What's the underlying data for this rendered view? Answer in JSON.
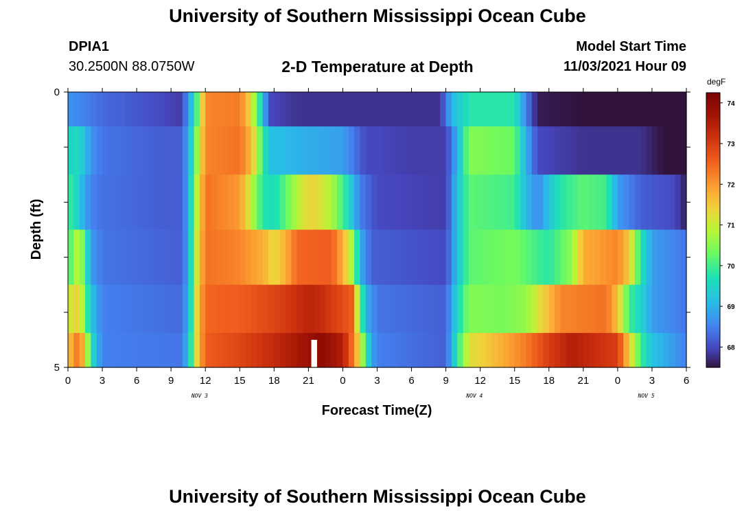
{
  "header": {
    "title": "University of Southern Mississippi Ocean Cube",
    "station": "DPIA1",
    "coords": "30.2500N  88.0750W",
    "subtitle": "2-D Temperature at Depth",
    "start_label": "Model Start Time",
    "start_value": "11/03/2021 Hour 09"
  },
  "footer": {
    "title": "University of Southern Mississippi Ocean Cube"
  },
  "chart_data": {
    "type": "heatmap",
    "title": "2-D Temperature at Depth",
    "xlabel": "Forecast Time(Z)",
    "ylabel": "Depth (ft)",
    "x_range_hours": [
      0,
      54
    ],
    "x_tick_labels": [
      "0",
      "3",
      "6",
      "9",
      "12",
      "15",
      "18",
      "21",
      "0",
      "3",
      "6",
      "9",
      "12",
      "15",
      "18",
      "21",
      "0",
      "3",
      "6"
    ],
    "date_labels": [
      {
        "text": "NOV 3",
        "hour": 11.5
      },
      {
        "text": "NOV 4",
        "hour": 35.5
      },
      {
        "text": "NOV 5",
        "hour": 50.5
      }
    ],
    "y_range_ft": [
      0,
      5
    ],
    "y_tick_labels": [
      "0",
      "5"
    ],
    "colorbar": {
      "unit": "degF",
      "range": [
        67.5,
        74.25
      ],
      "ticks": [
        "74",
        "73",
        "72",
        "71",
        "70",
        "69",
        "68"
      ]
    },
    "depth_rows_ft": [
      0.25,
      1.0,
      2.0,
      3.0,
      4.0,
      4.75
    ],
    "temperature_keypoints": [
      [
        [
          0,
          68.7
        ],
        [
          3,
          68.3
        ],
        [
          5,
          68.2
        ],
        [
          8,
          68.0
        ],
        [
          9.8,
          67.9
        ],
        [
          10.5,
          68.6
        ],
        [
          11.2,
          70.0
        ],
        [
          12,
          72.2
        ],
        [
          15,
          72.3
        ],
        [
          16,
          71.3
        ],
        [
          17,
          69.3
        ],
        [
          17.5,
          68.0
        ],
        [
          20,
          67.8
        ],
        [
          30,
          67.8
        ],
        [
          32.5,
          67.8
        ],
        [
          33.5,
          69.0
        ],
        [
          35,
          69.8
        ],
        [
          39,
          69.8
        ],
        [
          40,
          68.5
        ],
        [
          41,
          67.6
        ],
        [
          45,
          67.5
        ],
        [
          48,
          67.5
        ],
        [
          50,
          67.4
        ],
        [
          52,
          67.0
        ],
        [
          53.7,
          66.8
        ],
        [
          54,
          66.0
        ]
      ],
      [
        [
          0,
          69.5
        ],
        [
          1,
          69.6
        ],
        [
          2,
          68.7
        ],
        [
          3,
          68.4
        ],
        [
          8,
          68.2
        ],
        [
          9.8,
          68.2
        ],
        [
          10.5,
          68.8
        ],
        [
          11.2,
          70.5
        ],
        [
          12,
          72.2
        ],
        [
          15,
          72.4
        ],
        [
          16,
          71.7
        ],
        [
          17,
          70.0
        ],
        [
          17.5,
          69.2
        ],
        [
          20,
          69.0
        ],
        [
          24,
          68.8
        ],
        [
          26,
          68.0
        ],
        [
          30,
          67.9
        ],
        [
          33,
          67.9
        ],
        [
          34,
          69.0
        ],
        [
          35,
          70.5
        ],
        [
          39,
          70.3
        ],
        [
          40,
          69.0
        ],
        [
          41,
          68.0
        ],
        [
          45,
          67.8
        ],
        [
          48,
          67.8
        ],
        [
          50,
          67.8
        ],
        [
          52,
          67.5
        ],
        [
          54,
          67.0
        ]
      ],
      [
        [
          0,
          70.0
        ],
        [
          0.7,
          69.6
        ],
        [
          1.5,
          68.8
        ],
        [
          2.5,
          68.4
        ],
        [
          8,
          68.2
        ],
        [
          10,
          68.2
        ],
        [
          10.5,
          68.9
        ],
        [
          11.2,
          70.8
        ],
        [
          12,
          72.4
        ],
        [
          15,
          72.0
        ],
        [
          16,
          71.0
        ],
        [
          17,
          69.8
        ],
        [
          18,
          69.6
        ],
        [
          19.5,
          70.5
        ],
        [
          20.5,
          71.2
        ],
        [
          21.5,
          71.4
        ],
        [
          23,
          70.8
        ],
        [
          24.5,
          69.6
        ],
        [
          25.5,
          68.5
        ],
        [
          27,
          68.0
        ],
        [
          33,
          67.9
        ],
        [
          34,
          69.2
        ],
        [
          35,
          70.2
        ],
        [
          39,
          70.0
        ],
        [
          40,
          69.1
        ],
        [
          41,
          68.6
        ],
        [
          42,
          69.2
        ],
        [
          43,
          69.8
        ],
        [
          45,
          70.2
        ],
        [
          47,
          70.0
        ],
        [
          48,
          68.8
        ],
        [
          50,
          68.2
        ],
        [
          53,
          68.0
        ],
        [
          54,
          67.6
        ]
      ],
      [
        [
          0,
          69.8
        ],
        [
          0.5,
          70.6
        ],
        [
          1,
          71.0
        ],
        [
          1.5,
          70.0
        ],
        [
          2,
          68.8
        ],
        [
          3,
          68.4
        ],
        [
          10,
          68.2
        ],
        [
          10.5,
          68.9
        ],
        [
          11.2,
          71.0
        ],
        [
          12,
          72.4
        ],
        [
          15,
          72.2
        ],
        [
          17,
          71.8
        ],
        [
          18,
          71.3
        ],
        [
          19,
          71.8
        ],
        [
          20,
          72.5
        ],
        [
          23,
          72.6
        ],
        [
          24,
          71.8
        ],
        [
          25,
          70.5
        ],
        [
          25.5,
          69.0
        ],
        [
          26.5,
          68.2
        ],
        [
          33,
          68.0
        ],
        [
          34,
          69.2
        ],
        [
          35,
          70.2
        ],
        [
          39,
          70.4
        ],
        [
          42,
          69.8
        ],
        [
          44,
          70.6
        ],
        [
          45,
          71.8
        ],
        [
          48,
          72.2
        ],
        [
          49,
          71.5
        ],
        [
          50,
          69.8
        ],
        [
          51,
          68.8
        ],
        [
          54,
          68.4
        ]
      ],
      [
        [
          0,
          71.0
        ],
        [
          1,
          71.5
        ],
        [
          1.6,
          70.0
        ],
        [
          2.3,
          69.0
        ],
        [
          3,
          68.5
        ],
        [
          10,
          68.3
        ],
        [
          10.6,
          69.2
        ],
        [
          11.3,
          71.5
        ],
        [
          12,
          72.5
        ],
        [
          15,
          72.6
        ],
        [
          18,
          72.9
        ],
        [
          21,
          73.4
        ],
        [
          22,
          73.3
        ],
        [
          24.8,
          72.6
        ],
        [
          25.3,
          71.0
        ],
        [
          26,
          69.0
        ],
        [
          27,
          68.4
        ],
        [
          33,
          68.2
        ],
        [
          34,
          69.5
        ],
        [
          35,
          70.5
        ],
        [
          38,
          70.4
        ],
        [
          40,
          70.6
        ],
        [
          43,
          72.2
        ],
        [
          47,
          72.4
        ],
        [
          48,
          71.6
        ],
        [
          49,
          70.0
        ],
        [
          50,
          69.5
        ],
        [
          51,
          68.8
        ],
        [
          54,
          68.4
        ]
      ],
      [
        [
          0,
          71.5
        ],
        [
          1,
          72.5
        ],
        [
          1.6,
          71.0
        ],
        [
          2.3,
          69.3
        ],
        [
          3,
          68.5
        ],
        [
          10,
          68.4
        ],
        [
          10.6,
          69.4
        ],
        [
          11.3,
          71.5
        ],
        [
          12,
          72.6
        ],
        [
          15,
          72.9
        ],
        [
          18,
          73.3
        ],
        [
          21,
          73.8
        ],
        [
          22,
          74.0
        ],
        [
          24,
          73.5
        ],
        [
          25,
          72.2
        ],
        [
          25.8,
          70.5
        ],
        [
          26.4,
          69.0
        ],
        [
          27,
          68.5
        ],
        [
          33,
          68.2
        ],
        [
          34,
          69.8
        ],
        [
          35,
          71.2
        ],
        [
          37,
          71.6
        ],
        [
          40,
          72.3
        ],
        [
          42,
          73.0
        ],
        [
          44,
          73.5
        ],
        [
          48,
          73.0
        ],
        [
          49,
          71.5
        ],
        [
          50,
          70.0
        ],
        [
          51,
          69.2
        ],
        [
          54,
          68.5
        ]
      ]
    ],
    "data_gap": {
      "hour": 21.5,
      "depth_range_ft": [
        4.5,
        5.0
      ]
    }
  }
}
